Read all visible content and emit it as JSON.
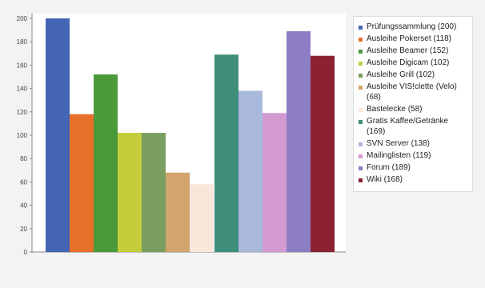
{
  "chart_data": {
    "type": "bar",
    "ylim": [
      0,
      200
    ],
    "yticks": [
      "0",
      "20",
      "40",
      "60",
      "80",
      "100",
      "120",
      "140",
      "160",
      "180",
      "200"
    ],
    "grid": false,
    "legend_position": "right",
    "series": [
      {
        "name": "Prüfungssammlung (200)",
        "value": 200,
        "color": "#4464b4",
        "group": 0
      },
      {
        "name": "Ausleihe Pokerset (118)",
        "value": 118,
        "color": "#e8702a",
        "group": 0
      },
      {
        "name": "Ausleihe Beamer (152)",
        "value": 152,
        "color": "#4a9a3c",
        "group": 0
      },
      {
        "name": "Ausleihe Digicam (102)",
        "value": 102,
        "color": "#c5cd3a",
        "group": 0
      },
      {
        "name": "Ausleihe Grill (102)",
        "value": 102,
        "color": "#7a9e60",
        "group": 0
      },
      {
        "name": "Ausleihe VIS!clette (Velo) (68)",
        "value": 68,
        "color": "#d2a46e",
        "group": 0
      },
      {
        "name": "Bastelecke (58)",
        "value": 58,
        "color": "#fbe6dc",
        "group": 0
      },
      {
        "name": "Gratis Kaffee/Getränke (169)",
        "value": 169,
        "color": "#3f8e7a",
        "group": 1
      },
      {
        "name": "SVN Server (138)",
        "value": 138,
        "color": "#a9b9dc",
        "group": 1
      },
      {
        "name": "Mailinglisten (119)",
        "value": 119,
        "color": "#d39ad2",
        "group": 1
      },
      {
        "name": "Forum (189)",
        "value": 189,
        "color": "#8d7ec4",
        "group": 1
      },
      {
        "name": "Wiki (168)",
        "value": 168,
        "color": "#8c2231",
        "group": 1
      }
    ]
  }
}
